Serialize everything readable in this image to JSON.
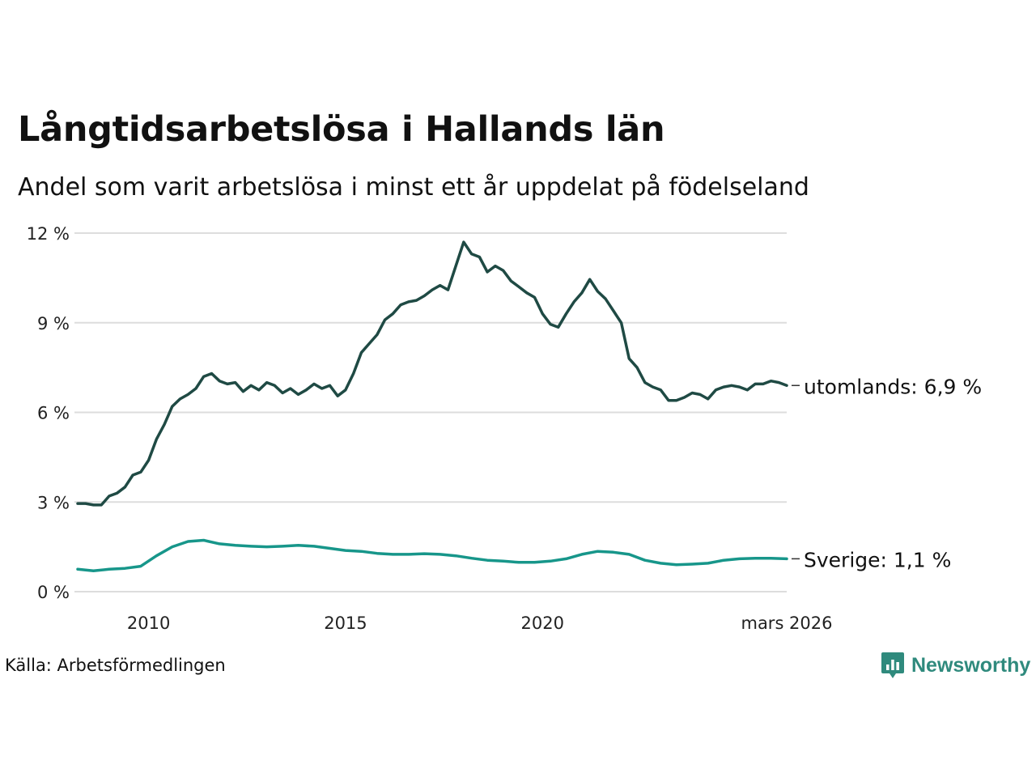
{
  "header": {
    "title": "Långtidsarbetslösa i Hallands län",
    "subtitle": "Andel som varit arbetslösa i minst ett år uppdelat på födelseland"
  },
  "footer": {
    "source": "Källa: Arbetsförmedlingen",
    "brand": "Newsworthy",
    "brand_icon": "bar-chart-speech-bubble-icon"
  },
  "colors": {
    "utomlands": "#1f4a44",
    "sverige": "#17968a",
    "grid": "#dddddd",
    "brand": "#2f8a7d"
  },
  "chart_data": {
    "type": "line",
    "title": "Långtidsarbetslösa i Hallands län",
    "subtitle": "Andel som varit arbetslösa i minst ett år uppdelat på födelseland",
    "xlabel": "",
    "ylabel": "",
    "x_range": [
      2008.2,
      2026.2
    ],
    "ylim": [
      0,
      12
    ],
    "y_ticks": [
      0,
      3,
      6,
      9,
      12
    ],
    "y_tick_labels": [
      "0 %",
      "3 %",
      "6 %",
      "9 %",
      "12 %"
    ],
    "x_ticks": [
      2010,
      2015,
      2020,
      2026.2
    ],
    "x_tick_labels": [
      "2010",
      "2015",
      "2020",
      "mars 2026"
    ],
    "grid": true,
    "series": [
      {
        "name": "utomlands",
        "end_label": "utomlands: 6,9 %",
        "color": "#1f4a44",
        "points": [
          [
            2008.2,
            2.95
          ],
          [
            2008.4,
            2.95
          ],
          [
            2008.6,
            2.9
          ],
          [
            2008.8,
            2.9
          ],
          [
            2009.0,
            3.2
          ],
          [
            2009.2,
            3.3
          ],
          [
            2009.4,
            3.5
          ],
          [
            2009.6,
            3.9
          ],
          [
            2009.8,
            4.0
          ],
          [
            2010.0,
            4.4
          ],
          [
            2010.2,
            5.1
          ],
          [
            2010.4,
            5.6
          ],
          [
            2010.6,
            6.2
          ],
          [
            2010.8,
            6.45
          ],
          [
            2011.0,
            6.6
          ],
          [
            2011.2,
            6.8
          ],
          [
            2011.4,
            7.2
          ],
          [
            2011.6,
            7.3
          ],
          [
            2011.8,
            7.05
          ],
          [
            2012.0,
            6.95
          ],
          [
            2012.2,
            7.0
          ],
          [
            2012.4,
            6.7
          ],
          [
            2012.6,
            6.9
          ],
          [
            2012.8,
            6.75
          ],
          [
            2013.0,
            7.0
          ],
          [
            2013.2,
            6.9
          ],
          [
            2013.4,
            6.65
          ],
          [
            2013.6,
            6.8
          ],
          [
            2013.8,
            6.6
          ],
          [
            2014.0,
            6.75
          ],
          [
            2014.2,
            6.95
          ],
          [
            2014.4,
            6.8
          ],
          [
            2014.6,
            6.9
          ],
          [
            2014.8,
            6.55
          ],
          [
            2015.0,
            6.75
          ],
          [
            2015.2,
            7.3
          ],
          [
            2015.4,
            8.0
          ],
          [
            2015.6,
            8.3
          ],
          [
            2015.8,
            8.6
          ],
          [
            2016.0,
            9.1
          ],
          [
            2016.2,
            9.3
          ],
          [
            2016.4,
            9.6
          ],
          [
            2016.6,
            9.7
          ],
          [
            2016.8,
            9.75
          ],
          [
            2017.0,
            9.9
          ],
          [
            2017.2,
            10.1
          ],
          [
            2017.4,
            10.25
          ],
          [
            2017.6,
            10.1
          ],
          [
            2017.8,
            10.9
          ],
          [
            2018.0,
            11.7
          ],
          [
            2018.2,
            11.3
          ],
          [
            2018.4,
            11.2
          ],
          [
            2018.6,
            10.7
          ],
          [
            2018.8,
            10.9
          ],
          [
            2019.0,
            10.75
          ],
          [
            2019.2,
            10.4
          ],
          [
            2019.4,
            10.2
          ],
          [
            2019.6,
            10.0
          ],
          [
            2019.8,
            9.85
          ],
          [
            2020.0,
            9.3
          ],
          [
            2020.2,
            8.95
          ],
          [
            2020.4,
            8.85
          ],
          [
            2020.6,
            9.3
          ],
          [
            2020.8,
            9.7
          ],
          [
            2021.0,
            10.0
          ],
          [
            2021.2,
            10.45
          ],
          [
            2021.4,
            10.05
          ],
          [
            2021.6,
            9.8
          ],
          [
            2021.8,
            9.4
          ],
          [
            2022.0,
            9.0
          ],
          [
            2022.2,
            7.8
          ],
          [
            2022.4,
            7.5
          ],
          [
            2022.6,
            7.0
          ],
          [
            2022.8,
            6.85
          ],
          [
            2023.0,
            6.75
          ],
          [
            2023.2,
            6.4
          ],
          [
            2023.4,
            6.4
          ],
          [
            2023.6,
            6.5
          ],
          [
            2023.8,
            6.65
          ],
          [
            2024.0,
            6.6
          ],
          [
            2024.2,
            6.45
          ],
          [
            2024.4,
            6.75
          ],
          [
            2024.6,
            6.85
          ],
          [
            2024.8,
            6.9
          ],
          [
            2025.0,
            6.85
          ],
          [
            2025.2,
            6.75
          ],
          [
            2025.4,
            6.95
          ],
          [
            2025.6,
            6.95
          ],
          [
            2025.8,
            7.05
          ],
          [
            2026.0,
            7.0
          ],
          [
            2026.2,
            6.9
          ]
        ]
      },
      {
        "name": "Sverige",
        "end_label": "Sverige: 1,1 %",
        "color": "#17968a",
        "points": [
          [
            2008.2,
            0.75
          ],
          [
            2008.6,
            0.7
          ],
          [
            2009.0,
            0.75
          ],
          [
            2009.4,
            0.78
          ],
          [
            2009.8,
            0.85
          ],
          [
            2010.2,
            1.2
          ],
          [
            2010.6,
            1.5
          ],
          [
            2011.0,
            1.68
          ],
          [
            2011.4,
            1.72
          ],
          [
            2011.8,
            1.6
          ],
          [
            2012.2,
            1.55
          ],
          [
            2012.6,
            1.52
          ],
          [
            2013.0,
            1.5
          ],
          [
            2013.4,
            1.52
          ],
          [
            2013.8,
            1.55
          ],
          [
            2014.2,
            1.52
          ],
          [
            2014.6,
            1.45
          ],
          [
            2015.0,
            1.38
          ],
          [
            2015.4,
            1.35
          ],
          [
            2015.8,
            1.28
          ],
          [
            2016.2,
            1.25
          ],
          [
            2016.6,
            1.25
          ],
          [
            2017.0,
            1.27
          ],
          [
            2017.4,
            1.25
          ],
          [
            2017.8,
            1.2
          ],
          [
            2018.2,
            1.12
          ],
          [
            2018.6,
            1.05
          ],
          [
            2019.0,
            1.02
          ],
          [
            2019.4,
            0.98
          ],
          [
            2019.8,
            0.98
          ],
          [
            2020.2,
            1.02
          ],
          [
            2020.6,
            1.1
          ],
          [
            2021.0,
            1.25
          ],
          [
            2021.4,
            1.35
          ],
          [
            2021.8,
            1.32
          ],
          [
            2022.2,
            1.25
          ],
          [
            2022.6,
            1.05
          ],
          [
            2023.0,
            0.95
          ],
          [
            2023.4,
            0.9
          ],
          [
            2023.8,
            0.92
          ],
          [
            2024.2,
            0.95
          ],
          [
            2024.6,
            1.05
          ],
          [
            2025.0,
            1.1
          ],
          [
            2025.4,
            1.12
          ],
          [
            2025.8,
            1.12
          ],
          [
            2026.2,
            1.1
          ]
        ]
      }
    ]
  }
}
